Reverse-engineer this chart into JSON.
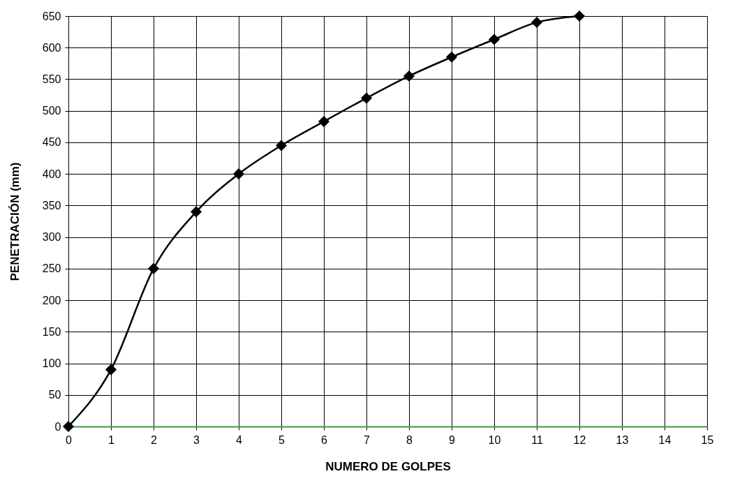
{
  "chart_data": {
    "type": "line",
    "xlabel": "NUMERO DE GOLPES",
    "ylabel": "PENETRACIÓN (mm)",
    "x": [
      0,
      1,
      2,
      3,
      4,
      5,
      6,
      7,
      8,
      9,
      10,
      11,
      12
    ],
    "series": [
      {
        "color": "#000000",
        "values": [
          0,
          90,
          250,
          340,
          400,
          445,
          483,
          520,
          555,
          585,
          613,
          640,
          650
        ]
      }
    ],
    "xlim": [
      0,
      15
    ],
    "xticks": [
      0,
      1,
      2,
      3,
      4,
      5,
      6,
      7,
      8,
      9,
      10,
      11,
      12,
      13,
      14,
      15
    ],
    "ylim": [
      0,
      650
    ],
    "yticks": [
      0,
      50,
      100,
      150,
      200,
      250,
      300,
      350,
      400,
      450,
      500,
      550,
      600,
      650
    ],
    "grid": true,
    "marker": "diamond",
    "line_style": "solid"
  }
}
